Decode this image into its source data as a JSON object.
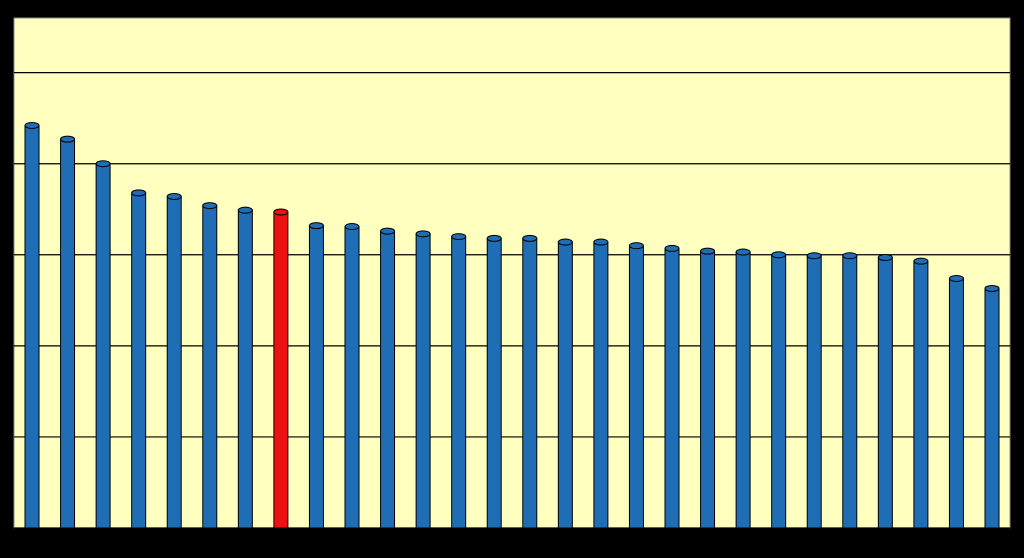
{
  "chart_data": {
    "type": "bar",
    "categories": [
      null,
      null,
      null,
      null,
      null,
      null,
      null,
      null,
      null,
      null,
      null,
      null,
      null,
      null,
      null,
      null,
      null,
      null,
      null,
      null,
      null,
      null,
      null,
      null,
      null,
      null,
      null,
      null
    ],
    "values": [
      4.42,
      4.27,
      4.0,
      3.68,
      3.64,
      3.54,
      3.49,
      3.47,
      3.32,
      3.31,
      3.26,
      3.23,
      3.2,
      3.18,
      3.18,
      3.14,
      3.14,
      3.1,
      3.07,
      3.04,
      3.03,
      3.0,
      2.99,
      2.99,
      2.97,
      2.93,
      2.74,
      2.63
    ],
    "colors": [
      "#1f6eb5",
      "#1f6eb5",
      "#1f6eb5",
      "#1f6eb5",
      "#1f6eb5",
      "#1f6eb5",
      "#1f6eb5",
      "#ee1111",
      "#1f6eb5",
      "#1f6eb5",
      "#1f6eb5",
      "#1f6eb5",
      "#1f6eb5",
      "#1f6eb5",
      "#1f6eb5",
      "#1f6eb5",
      "#1f6eb5",
      "#1f6eb5",
      "#1f6eb5",
      "#1f6eb5",
      "#1f6eb5",
      "#1f6eb5",
      "#1f6eb5",
      "#1f6eb5",
      "#1f6eb5",
      "#1f6eb5",
      "#1f6eb5",
      "#1f6eb5"
    ],
    "ylim": [
      0,
      5.6
    ],
    "yticks": [
      0,
      1,
      2,
      3,
      4,
      5
    ],
    "grid": true
  }
}
